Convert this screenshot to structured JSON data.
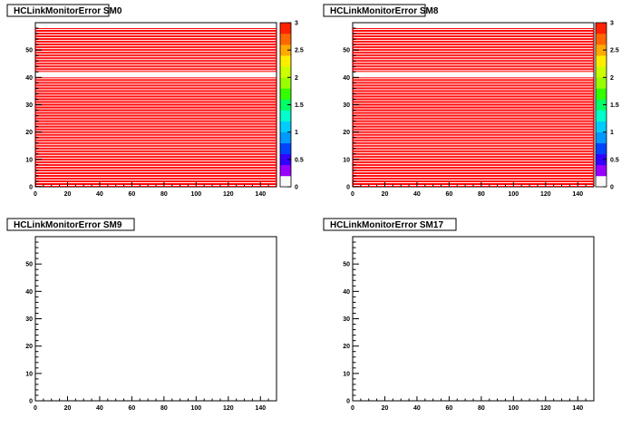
{
  "chart_data": [
    {
      "type": "heatmap",
      "title": "HCLinkMonitorError SM0",
      "xlim": [
        0,
        150
      ],
      "ylim": [
        0,
        60
      ],
      "x_ticks": [
        0,
        20,
        40,
        60,
        80,
        100,
        120,
        140
      ],
      "y_ticks": [
        0,
        10,
        20,
        30,
        40,
        50
      ],
      "row_value": 3,
      "rows_filled": [
        0,
        1,
        2,
        3,
        4,
        5,
        6,
        7,
        8,
        9,
        10,
        11,
        12,
        13,
        14,
        15,
        16,
        17,
        18,
        19,
        20,
        21,
        22,
        23,
        24,
        25,
        26,
        27,
        28,
        29,
        30,
        31,
        32,
        33,
        34,
        35,
        36,
        37,
        38,
        39,
        42,
        43,
        44,
        45,
        46,
        47,
        48,
        49,
        50,
        51,
        52,
        53,
        54,
        55,
        56,
        57
      ],
      "colorbar": {
        "min": 0,
        "max": 3,
        "ticks": [
          "0",
          "0.5",
          "1",
          "1.5",
          "2",
          "2.5",
          "3"
        ]
      }
    },
    {
      "type": "heatmap",
      "title": "HCLinkMonitorError SM8",
      "xlim": [
        0,
        150
      ],
      "ylim": [
        0,
        60
      ],
      "x_ticks": [
        0,
        20,
        40,
        60,
        80,
        100,
        120,
        140
      ],
      "y_ticks": [
        0,
        10,
        20,
        30,
        40,
        50
      ],
      "row_value": 3,
      "rows_filled": [
        0,
        1,
        2,
        3,
        4,
        5,
        6,
        7,
        8,
        9,
        10,
        11,
        12,
        13,
        14,
        15,
        16,
        17,
        18,
        19,
        20,
        21,
        22,
        23,
        24,
        25,
        26,
        27,
        28,
        29,
        30,
        31,
        32,
        33,
        34,
        35,
        36,
        37,
        38,
        39,
        42,
        43,
        44,
        45,
        46,
        47,
        48,
        49,
        50,
        51,
        52,
        53,
        54,
        55,
        56,
        57
      ],
      "colorbar": {
        "min": 0,
        "max": 3,
        "ticks": [
          "0",
          "0.5",
          "1",
          "1.5",
          "2",
          "2.5",
          "3"
        ]
      }
    },
    {
      "type": "heatmap",
      "title": "HCLinkMonitorError SM9",
      "xlim": [
        0,
        150
      ],
      "ylim": [
        0,
        60
      ],
      "x_ticks": [
        0,
        20,
        40,
        60,
        80,
        100,
        120,
        140
      ],
      "y_ticks": [
        0,
        10,
        20,
        30,
        40,
        50
      ],
      "rows_filled": []
    },
    {
      "type": "heatmap",
      "title": "HCLinkMonitorError SM17",
      "xlim": [
        0,
        150
      ],
      "ylim": [
        0,
        60
      ],
      "x_ticks": [
        0,
        20,
        40,
        60,
        80,
        100,
        120,
        140
      ],
      "y_ticks": [
        0,
        10,
        20,
        30,
        40,
        50
      ],
      "rows_filled": []
    }
  ],
  "colors": {
    "cell_fill": "#ff0000",
    "cell_border": "#000000",
    "palette": [
      "#f9f9f9",
      "#9900ff",
      "#3300ff",
      "#0044ff",
      "#0099ff",
      "#00ccff",
      "#00ffcc",
      "#00ff66",
      "#33ff00",
      "#99ff00",
      "#ccff00",
      "#ffee00",
      "#ffaa00",
      "#ff6600",
      "#ff2200"
    ]
  }
}
